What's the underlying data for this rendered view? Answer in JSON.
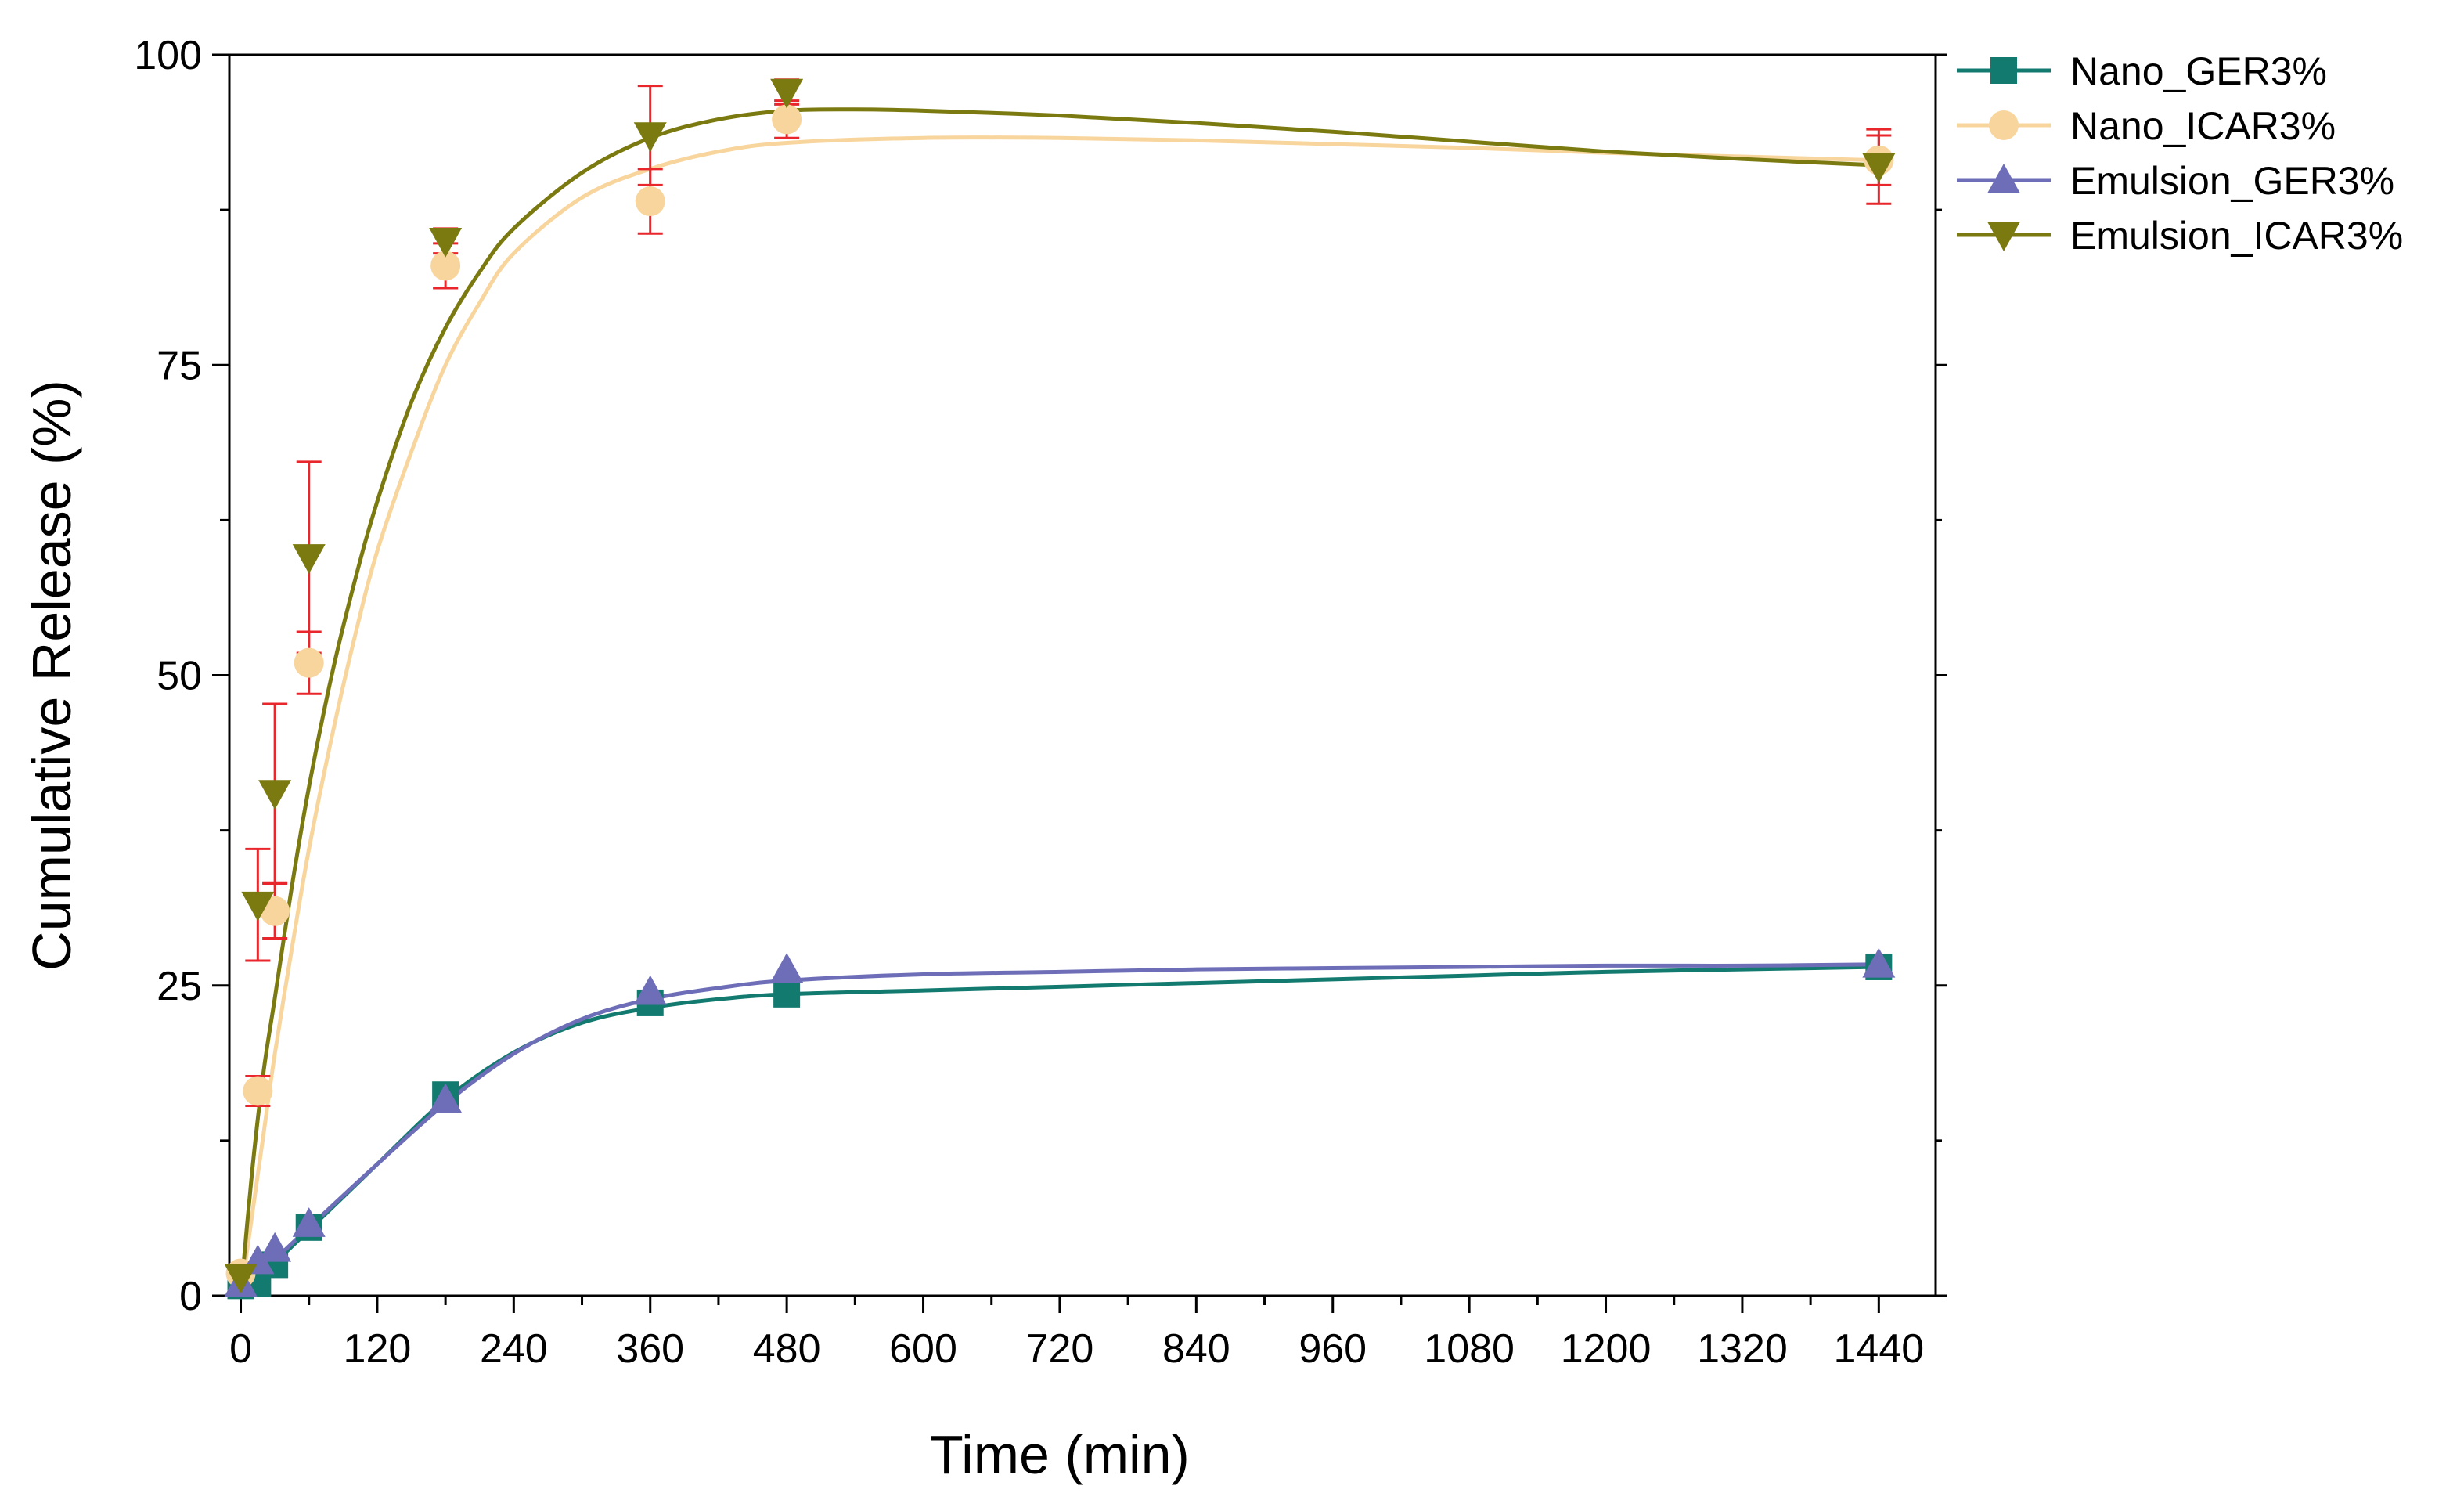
{
  "chart_data": {
    "type": "scatter",
    "title": "",
    "xlabel": "Time (min)",
    "ylabel": "Cumulative Release (%)",
    "xlim": [
      -10,
      1490
    ],
    "ylim": [
      0,
      100
    ],
    "xticks": [
      0,
      120,
      240,
      360,
      480,
      600,
      720,
      840,
      960,
      1080,
      1200,
      1320,
      1440
    ],
    "yticks": [
      0,
      25,
      50,
      75,
      100
    ],
    "grid": false,
    "legend_position": "top-right outside plot",
    "fitted_curves": true,
    "errorbar_color": "#e8262b",
    "series": [
      {
        "name": "Nano_GER3%",
        "color": "#137a70",
        "marker": "square",
        "x": [
          0,
          15,
          30,
          60,
          180,
          360,
          480,
          1440
        ],
        "values": [
          0.8,
          1.0,
          2.5,
          5.5,
          16.2,
          23.6,
          24.3,
          26.5
        ],
        "errors": [
          0,
          0,
          0,
          0,
          0,
          0,
          0,
          0
        ],
        "fit": [
          [
            0,
            0
          ],
          [
            60,
            5.3
          ],
          [
            120,
            10.6
          ],
          [
            180,
            15.8
          ],
          [
            240,
            19.6
          ],
          [
            300,
            22.0
          ],
          [
            360,
            23.2
          ],
          [
            420,
            23.9
          ],
          [
            480,
            24.3
          ],
          [
            600,
            24.6
          ],
          [
            720,
            24.9
          ],
          [
            840,
            25.2
          ],
          [
            960,
            25.5
          ],
          [
            1080,
            25.8
          ],
          [
            1200,
            26.1
          ],
          [
            1320,
            26.3
          ],
          [
            1440,
            26.5
          ]
        ]
      },
      {
        "name": "Nano_ICAR3%",
        "color": "#f8d59c",
        "marker": "circle",
        "x": [
          0,
          15,
          30,
          60,
          180,
          360,
          480,
          1440
        ],
        "values": [
          1.8,
          16.5,
          31.0,
          51.0,
          83.0,
          88.2,
          94.8,
          91.5
        ],
        "errors": [
          0.5,
          1.2,
          2.2,
          2.5,
          1.8,
          2.6,
          1.5,
          2.0
        ],
        "fit": [
          [
            0,
            0
          ],
          [
            10,
            6.5
          ],
          [
            20,
            13
          ],
          [
            30,
            19.5
          ],
          [
            45,
            28
          ],
          [
            60,
            36
          ],
          [
            80,
            45
          ],
          [
            100,
            53
          ],
          [
            120,
            60
          ],
          [
            150,
            68
          ],
          [
            180,
            75
          ],
          [
            210,
            80
          ],
          [
            240,
            84
          ],
          [
            300,
            88.5
          ],
          [
            360,
            90.8
          ],
          [
            420,
            92.2
          ],
          [
            480,
            92.9
          ],
          [
            600,
            93.3
          ],
          [
            720,
            93.3
          ],
          [
            840,
            93.1
          ],
          [
            960,
            92.8
          ],
          [
            1080,
            92.5
          ],
          [
            1200,
            92.1
          ],
          [
            1320,
            91.8
          ],
          [
            1440,
            91.5
          ]
        ]
      },
      {
        "name": "Emulsion_GER3%",
        "color": "#6e6eb8",
        "marker": "triangle-up",
        "x": [
          0,
          15,
          30,
          60,
          180,
          360,
          480,
          1440
        ],
        "values": [
          1.0,
          2.8,
          3.8,
          5.8,
          15.8,
          24.5,
          26.3,
          26.7
        ],
        "errors": [
          0,
          0,
          0,
          0,
          0,
          0,
          0,
          0
        ],
        "fit": [
          [
            0,
            0
          ],
          [
            15,
            1.5
          ],
          [
            30,
            2.9
          ],
          [
            60,
            5.5
          ],
          [
            120,
            10.6
          ],
          [
            180,
            15.5
          ],
          [
            240,
            19.5
          ],
          [
            300,
            22.3
          ],
          [
            360,
            23.9
          ],
          [
            420,
            24.8
          ],
          [
            480,
            25.4
          ],
          [
            600,
            25.9
          ],
          [
            720,
            26.1
          ],
          [
            840,
            26.3
          ],
          [
            960,
            26.4
          ],
          [
            1080,
            26.5
          ],
          [
            1200,
            26.6
          ],
          [
            1320,
            26.6
          ],
          [
            1440,
            26.7
          ]
        ]
      },
      {
        "name": "Emulsion_ICAR3%",
        "color": "#7b7a10",
        "marker": "triangle-down",
        "x": [
          0,
          15,
          30,
          60,
          180,
          360,
          480,
          1440
        ],
        "values": [
          1.5,
          31.5,
          40.5,
          59.5,
          85.0,
          93.5,
          97.0,
          91.0
        ],
        "errors": [
          0.6,
          4.5,
          7.2,
          7.7,
          1.0,
          4.0,
          1.0,
          3.0
        ],
        "fit": [
          [
            0,
            0
          ],
          [
            10,
            10
          ],
          [
            20,
            18
          ],
          [
            30,
            24
          ],
          [
            45,
            33
          ],
          [
            60,
            41
          ],
          [
            80,
            50
          ],
          [
            100,
            57.5
          ],
          [
            120,
            64
          ],
          [
            150,
            72
          ],
          [
            180,
            78
          ],
          [
            210,
            82.5
          ],
          [
            240,
            86
          ],
          [
            300,
            90.5
          ],
          [
            360,
            93.3
          ],
          [
            420,
            94.8
          ],
          [
            480,
            95.5
          ],
          [
            540,
            95.6
          ],
          [
            600,
            95.5
          ],
          [
            720,
            95.1
          ],
          [
            840,
            94.5
          ],
          [
            960,
            93.8
          ],
          [
            1080,
            93.0
          ],
          [
            1200,
            92.2
          ],
          [
            1320,
            91.6
          ],
          [
            1440,
            91.1
          ]
        ]
      }
    ]
  }
}
